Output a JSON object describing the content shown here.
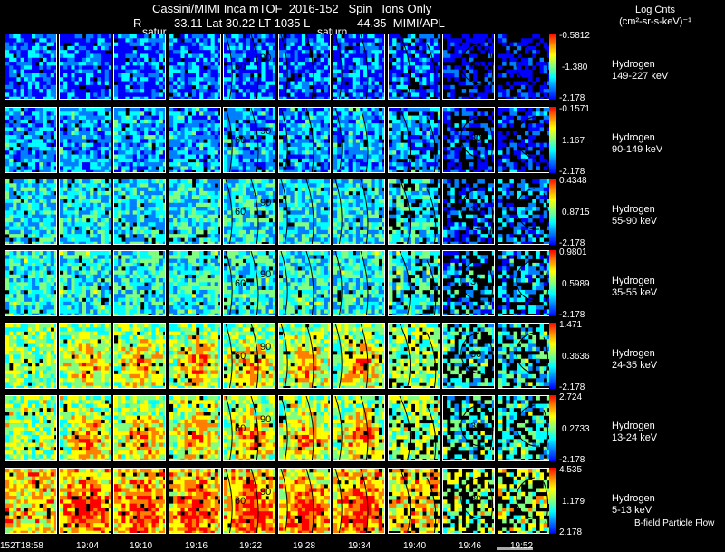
{
  "header": {
    "line1": "Cassini/MIMI Inca mTOF  2016-152   Spin   Ions Only",
    "r_label": "R",
    "line2": "33.11 Lat 30.22 LT 1035 L",
    "line2b": "44.35  MIMI/APL",
    "saturn_left": "satur",
    "saturn_right": "saturn"
  },
  "units": {
    "line1": "Log Cnts",
    "line2": "(cm²-sr-s-keV)⁻¹"
  },
  "time_ticks": [
    "152T18:58",
    "19:04",
    "19:10",
    "19:16",
    "19:22",
    "19:28",
    "19:34",
    "19:40",
    "19:46",
    "19:52"
  ],
  "rows": [
    {
      "species": "Hydrogen",
      "energy": "149-227 keV",
      "cb_top": "-0.5812",
      "cb_mid": "-1.380",
      "cb_bot": "-2.178",
      "level": 0.25
    },
    {
      "species": "Hydrogen",
      "energy": "90-149 keV",
      "cb_top": "-0.1571",
      "cb_mid": "1.167",
      "cb_bot": "-2.178",
      "level": 0.3
    },
    {
      "species": "Hydrogen",
      "energy": "55-90 keV",
      "cb_top": "0.4348",
      "cb_mid": "0.8715",
      "cb_bot": "-2.178",
      "level": 0.4
    },
    {
      "species": "Hydrogen",
      "energy": "35-55 keV",
      "cb_top": "0.9801",
      "cb_mid": "0.5989",
      "cb_bot": "-2.178",
      "level": 0.45
    },
    {
      "species": "Hydrogen",
      "energy": "24-35 keV",
      "cb_top": "1.471",
      "cb_mid": "0.3636",
      "cb_bot": "-2.178",
      "level": 0.6
    },
    {
      "species": "Hydrogen",
      "energy": "13-24 keV",
      "cb_top": "2.724",
      "cb_mid": "0.2733",
      "cb_bot": "-2.178",
      "level": 0.62
    },
    {
      "species": "Hydrogen",
      "energy": "5-13 keV",
      "cb_top": "4.535",
      "cb_mid": "1.179",
      "cb_bot": "2.178",
      "level": 0.8
    }
  ],
  "overlay_labels": {
    "a60": "60",
    "a90": "90",
    "a120": "12",
    "a30": "30"
  },
  "bfield_label": "B-field Particle Flow",
  "chart_data": {
    "type": "heatmap",
    "title": "Cassini/MIMI Inca mTOF 2016-152 Spin Ions Only",
    "subtitle": "R 33.11 Lat 30.22 LT 1035 L 44.35 MIMI/APL",
    "colorbar_label": "Log Cnts (cm²-sr-s-keV)⁻¹",
    "x_ticks": [
      "152T18:58",
      "19:04",
      "19:10",
      "19:16",
      "19:22",
      "19:28",
      "19:34",
      "19:40",
      "19:46",
      "19:52"
    ],
    "rows": [
      "Hydrogen 149-227 keV",
      "Hydrogen 90-149 keV",
      "Hydrogen 55-90 keV",
      "Hydrogen 35-55 keV",
      "Hydrogen 24-35 keV",
      "Hydrogen 13-24 keV",
      "Hydrogen 5-13 keV"
    ],
    "colorbar_ranges": [
      {
        "max": -0.5812,
        "mid": -1.38,
        "min": -2.178
      },
      {
        "max": -0.1571,
        "mid": 1.167,
        "min": -2.178
      },
      {
        "max": 0.4348,
        "mid": 0.8715,
        "min": -2.178
      },
      {
        "max": 0.9801,
        "mid": 0.5989,
        "min": -2.178
      },
      {
        "max": 1.471,
        "mid": 0.3636,
        "min": -2.178
      },
      {
        "max": 2.724,
        "mid": 0.2733,
        "min": -2.178
      },
      {
        "max": 4.535,
        "mid": 1.179,
        "min": 2.178
      }
    ],
    "colorscale": [
      "#0000ff",
      "#0080ff",
      "#00ffff",
      "#80ff80",
      "#ffff00",
      "#ff8000",
      "#ff0000"
    ]
  }
}
